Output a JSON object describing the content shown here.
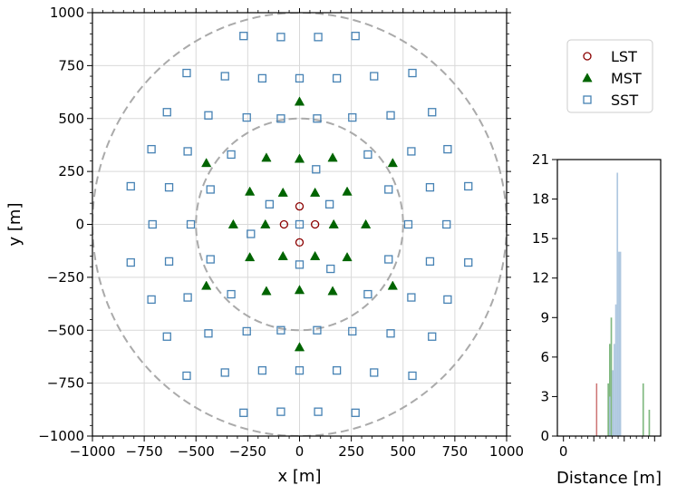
{
  "chart_data": [
    {
      "type": "scatter",
      "title": "",
      "xlabel": "x [m]",
      "ylabel": "y [m]",
      "xlim": [
        -1000,
        1000
      ],
      "ylim": [
        -1000,
        1000
      ],
      "xticks": [
        -1000,
        -750,
        -500,
        -250,
        0,
        250,
        500,
        750,
        1000
      ],
      "yticks": [
        -1000,
        -750,
        -500,
        -250,
        0,
        250,
        500,
        750,
        1000
      ],
      "grid": true,
      "legend": "outside-right-top",
      "circles": [
        {
          "radius": 500,
          "style": "dashed",
          "color": "#aaaaaa"
        },
        {
          "radius": 1000,
          "style": "dashed",
          "color": "#aaaaaa"
        }
      ],
      "series": [
        {
          "name": "LST",
          "marker": "circle-open",
          "color": "#8b0000",
          "points": [
            [
              0,
              85
            ],
            [
              -75,
              0
            ],
            [
              75,
              0
            ],
            [
              0,
              -85
            ]
          ]
        },
        {
          "name": "MST",
          "marker": "triangle-filled",
          "color": "#006400",
          "points": [
            [
              0,
              580
            ],
            [
              -450,
              290
            ],
            [
              450,
              290
            ],
            [
              -160,
              315
            ],
            [
              0,
              310
            ],
            [
              160,
              315
            ],
            [
              -240,
              155
            ],
            [
              -80,
              150
            ],
            [
              75,
              150
            ],
            [
              230,
              155
            ],
            [
              -320,
              0
            ],
            [
              -165,
              0
            ],
            [
              165,
              0
            ],
            [
              320,
              0
            ],
            [
              -240,
              -155
            ],
            [
              -80,
              -150
            ],
            [
              75,
              -150
            ],
            [
              230,
              -155
            ],
            [
              -160,
              -315
            ],
            [
              0,
              -310
            ],
            [
              160,
              -315
            ],
            [
              -450,
              -290
            ],
            [
              450,
              -290
            ],
            [
              0,
              -580
            ]
          ]
        },
        {
          "name": "SST",
          "marker": "square-open",
          "color": "#4682b4",
          "points": [
            [
              -270,
              890
            ],
            [
              -90,
              885
            ],
            [
              90,
              885
            ],
            [
              270,
              890
            ],
            [
              -545,
              715
            ],
            [
              -360,
              700
            ],
            [
              -180,
              690
            ],
            [
              0,
              690
            ],
            [
              180,
              690
            ],
            [
              360,
              700
            ],
            [
              545,
              715
            ],
            [
              -640,
              530
            ],
            [
              -440,
              515
            ],
            [
              -255,
              505
            ],
            [
              -90,
              500
            ],
            [
              85,
              500
            ],
            [
              255,
              505
            ],
            [
              440,
              515
            ],
            [
              640,
              530
            ],
            [
              -715,
              355
            ],
            [
              -540,
              345
            ],
            [
              -330,
              330
            ],
            [
              80,
              260
            ],
            [
              330,
              330
            ],
            [
              540,
              345
            ],
            [
              715,
              355
            ],
            [
              -815,
              180
            ],
            [
              -630,
              175
            ],
            [
              -430,
              165
            ],
            [
              -145,
              95
            ],
            [
              145,
              95
            ],
            [
              430,
              165
            ],
            [
              630,
              175
            ],
            [
              815,
              180
            ],
            [
              -710,
              0
            ],
            [
              -525,
              0
            ],
            [
              0,
              0
            ],
            [
              525,
              0
            ],
            [
              710,
              0
            ],
            [
              -235,
              -45
            ],
            [
              -815,
              -180
            ],
            [
              -630,
              -175
            ],
            [
              -430,
              -165
            ],
            [
              0,
              -190
            ],
            [
              150,
              -210
            ],
            [
              430,
              -165
            ],
            [
              630,
              -175
            ],
            [
              815,
              -180
            ],
            [
              -715,
              -355
            ],
            [
              -540,
              -345
            ],
            [
              -330,
              -330
            ],
            [
              330,
              -330
            ],
            [
              540,
              -345
            ],
            [
              715,
              -355
            ],
            [
              -640,
              -530
            ],
            [
              -440,
              -515
            ],
            [
              -255,
              -505
            ],
            [
              -90,
              -500
            ],
            [
              85,
              -500
            ],
            [
              255,
              -505
            ],
            [
              440,
              -515
            ],
            [
              640,
              -530
            ],
            [
              -545,
              -715
            ],
            [
              -360,
              -700
            ],
            [
              -180,
              -690
            ],
            [
              0,
              -690
            ],
            [
              180,
              -690
            ],
            [
              360,
              -700
            ],
            [
              545,
              -715
            ],
            [
              -270,
              -890
            ],
            [
              -90,
              -885
            ],
            [
              90,
              -885
            ],
            [
              270,
              -890
            ]
          ]
        }
      ]
    },
    {
      "type": "bar",
      "title": "",
      "xlabel": "Distance [m]",
      "ylabel": "",
      "xlim": [
        -20,
        320
      ],
      "ylim": [
        0,
        21
      ],
      "xticks": [
        0,
        100,
        200,
        300
      ],
      "xtick_labels": [
        "0",
        "",
        "",
        ""
      ],
      "yticks": [
        0,
        3,
        6,
        9,
        12,
        15,
        18,
        21
      ],
      "grid": false,
      "histograms": [
        {
          "name": "LST",
          "color": "#c86464",
          "bins": [
            [
              107,
              111,
              4
            ]
          ]
        },
        {
          "name": "MST",
          "color": "#72b072",
          "bins": [
            [
              145,
              150,
              4
            ],
            [
              150,
              155,
              7
            ],
            [
              155,
              160,
              9
            ],
            [
              260,
              265,
              4
            ],
            [
              280,
              285,
              2
            ]
          ]
        },
        {
          "name": "SST",
          "color": "#a6c2dd",
          "bins": [
            [
              150,
              155,
              3
            ],
            [
              160,
              165,
              5
            ],
            [
              165,
              170,
              7
            ],
            [
              170,
              175,
              10
            ],
            [
              175,
              180,
              20
            ],
            [
              180,
              190,
              14
            ]
          ]
        }
      ]
    }
  ]
}
